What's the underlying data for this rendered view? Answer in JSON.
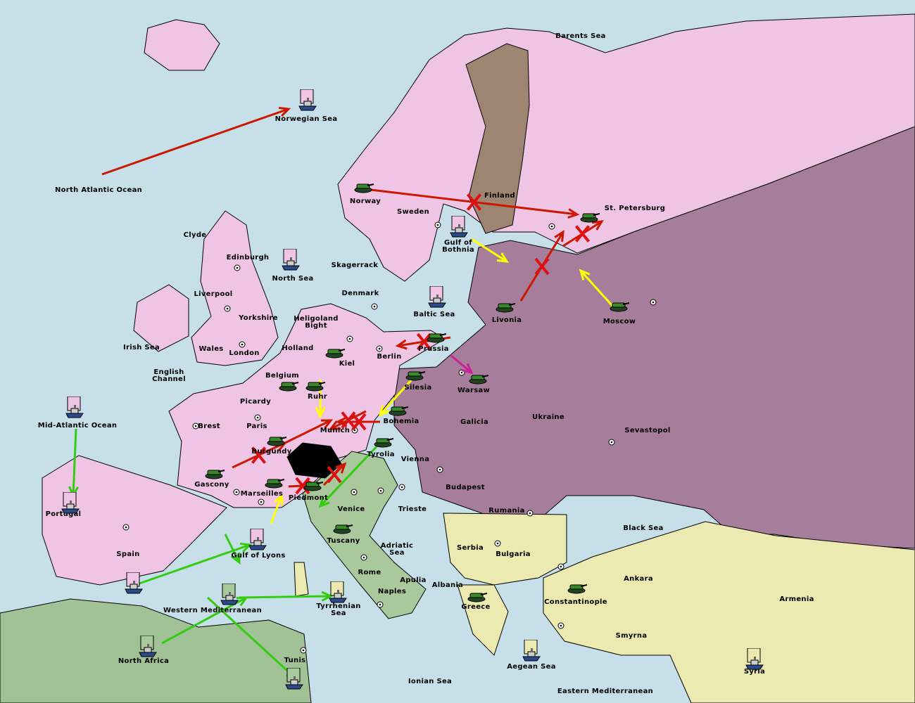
{
  "map_title": "",
  "colors": {
    "sea": "#c6dfe9",
    "pink": "#f0c4e4",
    "purple": "#a67e9b",
    "brown": "#9e8572",
    "yellow": "#eceab0",
    "green": "#a9c89c",
    "africa": "#a1c196",
    "order_red": "#cc1800",
    "order_yellow": "#ffff00",
    "order_green": "#33cc11",
    "order_magenta": "#cc2299"
  },
  "provinces": [
    "Barents Sea",
    "Norwegian Sea",
    "North Atlantic Ocean",
    "Finland",
    "St. Petersburg",
    "Norway",
    "Sweden",
    "Gulf of\nBothnia",
    "Clyde",
    "Edinburgh",
    "North Sea",
    "Skagerrack",
    "Liverpool",
    "Denmark",
    "Baltic Sea",
    "Livonia",
    "Moscow",
    "Yorkshire",
    "Heligoland\nBight",
    "Irish Sea",
    "Wales",
    "London",
    "Holland",
    "Prussia",
    "Berlin",
    "Kiel",
    "English\nChannel",
    "Belgium",
    "Silesia",
    "Warsaw",
    "Ruhr",
    "Picardy",
    "Brest",
    "Paris",
    "Munich",
    "Bohemia",
    "Galicia",
    "Ukraine",
    "Sevastopol",
    "Mid-Atlantic Ocean",
    "Burgundy",
    "Tyrolia",
    "Vienna",
    "Budapest",
    "Gascony",
    "Marseilles",
    "Piedmont",
    "Venice",
    "Trieste",
    "Rumania",
    "Portugal",
    "Black Sea",
    "Spain",
    "Gulf of Lyons",
    "Tuscany",
    "Serbia",
    "Bulgaria",
    "Adriatic\nSea",
    "Rome",
    "Apulia",
    "Albania",
    "Ankara",
    "Armenia",
    "Naples",
    "Constantinople",
    "Greece",
    "Western Mediterranean",
    "Tyrrhenian\nSea",
    "Smyrna",
    "North Africa",
    "Tunis",
    "Aegean Sea",
    "Ionian Sea",
    "Eastern Mediterranean",
    "Syria"
  ],
  "units": [
    {
      "type": "fleet",
      "province": "Norwegian Sea",
      "owner": "pink"
    },
    {
      "type": "fleet",
      "province": "Gulf of Bothnia",
      "owner": "pink"
    },
    {
      "type": "fleet",
      "province": "North Sea",
      "owner": "pink"
    },
    {
      "type": "fleet",
      "province": "Baltic Sea",
      "owner": "pink"
    },
    {
      "type": "fleet",
      "province": "Mid-Atlantic Ocean",
      "owner": "pink"
    },
    {
      "type": "fleet",
      "province": "Portugal",
      "owner": "pink"
    },
    {
      "type": "fleet",
      "province": "Spain",
      "owner": "pink"
    },
    {
      "type": "fleet",
      "province": "Gulf of Lyons",
      "owner": "pink"
    },
    {
      "type": "fleet",
      "province": "Western Mediterranean",
      "owner": "green"
    },
    {
      "type": "fleet",
      "province": "Tyrrhenian Sea",
      "owner": "yellow"
    },
    {
      "type": "fleet",
      "province": "North Africa",
      "owner": "green"
    },
    {
      "type": "fleet",
      "province": "Tunis",
      "owner": "green"
    },
    {
      "type": "fleet",
      "province": "Aegean Sea",
      "owner": "yellow"
    },
    {
      "type": "fleet",
      "province": "Syria",
      "owner": "yellow"
    },
    {
      "type": "army",
      "province": "Norway",
      "owner": "pink"
    },
    {
      "type": "army",
      "province": "St. Petersburg",
      "owner": "pink"
    },
    {
      "type": "army",
      "province": "Livonia",
      "owner": "purple"
    },
    {
      "type": "army",
      "province": "Moscow",
      "owner": "purple"
    },
    {
      "type": "army",
      "province": "Prussia",
      "owner": "pink"
    },
    {
      "type": "army",
      "province": "Kiel",
      "owner": "pink"
    },
    {
      "type": "army",
      "province": "Ruhr",
      "owner": "pink"
    },
    {
      "type": "army",
      "province": "Belgium",
      "owner": "pink"
    },
    {
      "type": "army",
      "province": "Silesia",
      "owner": "purple"
    },
    {
      "type": "army",
      "province": "Warsaw",
      "owner": "purple"
    },
    {
      "type": "army",
      "province": "Bohemia",
      "owner": "purple"
    },
    {
      "type": "army",
      "province": "Tyrolia",
      "owner": "green"
    },
    {
      "type": "army",
      "province": "Burgundy",
      "owner": "pink"
    },
    {
      "type": "army",
      "province": "Gascony",
      "owner": "pink"
    },
    {
      "type": "army",
      "province": "Marseilles",
      "owner": "pink"
    },
    {
      "type": "army",
      "province": "Piedmont",
      "owner": "green"
    },
    {
      "type": "army",
      "province": "Tuscany",
      "owner": "green"
    },
    {
      "type": "army",
      "province": "Greece",
      "owner": "yellow"
    },
    {
      "type": "army",
      "province": "Constantinople",
      "owner": "yellow"
    }
  ],
  "orders": [
    {
      "color": "order_red",
      "failed": false
    },
    {
      "color": "order_red",
      "failed": true
    },
    {
      "color": "order_red",
      "failed": true
    },
    {
      "color": "order_red",
      "failed": true
    },
    {
      "color": "order_yellow",
      "failed": false
    },
    {
      "color": "order_yellow",
      "failed": false
    },
    {
      "color": "order_red",
      "failed": true
    },
    {
      "color": "order_magenta",
      "failed": false
    },
    {
      "color": "order_red",
      "failed": false
    },
    {
      "color": "order_yellow",
      "failed": false
    },
    {
      "color": "order_yellow",
      "failed": false
    },
    {
      "color": "order_red",
      "failed": true
    },
    {
      "color": "order_red",
      "failed": true
    },
    {
      "color": "order_red",
      "failed": true
    },
    {
      "color": "order_red",
      "failed": true
    },
    {
      "color": "order_red",
      "failed": true
    },
    {
      "color": "order_yellow",
      "failed": false
    },
    {
      "color": "order_green",
      "failed": false
    },
    {
      "color": "order_green",
      "failed": false
    },
    {
      "color": "order_green",
      "failed": false
    },
    {
      "color": "order_green",
      "failed": false
    },
    {
      "color": "order_green",
      "failed": false
    },
    {
      "color": "order_green",
      "failed": false
    },
    {
      "color": "order_green",
      "failed": false
    }
  ]
}
